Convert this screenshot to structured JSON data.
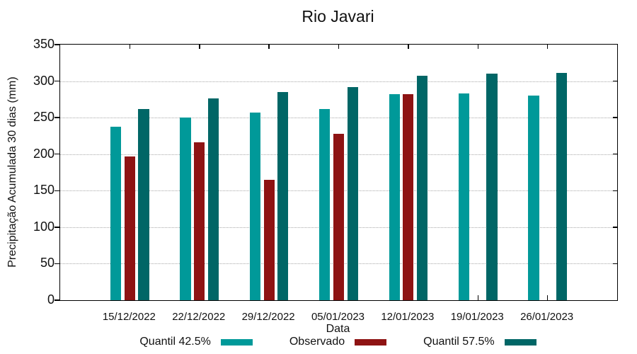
{
  "title": "Rio Javari",
  "chart_data": {
    "type": "bar",
    "title": "Rio Javari",
    "xlabel": "Data",
    "ylabel": "Precipitação Acumulada 30 dias (mm)",
    "categories": [
      "15/12/2022",
      "22/12/2022",
      "29/12/2022",
      "05/01/2023",
      "12/01/2023",
      "19/01/2023",
      "26/01/2023"
    ],
    "series": [
      {
        "name": "Quantil 42.5%",
        "color": "#009999",
        "values": [
          238,
          250,
          257,
          262,
          282,
          283,
          280
        ]
      },
      {
        "name": "Observado",
        "color": "#8E1313",
        "values": [
          197,
          216,
          165,
          228,
          282,
          null,
          null
        ]
      },
      {
        "name": "Quantil 57.5%",
        "color": "#006666",
        "values": [
          262,
          276,
          285,
          292,
          307,
          310,
          311
        ]
      }
    ],
    "ylim": [
      0,
      350
    ],
    "ytick_step": 50,
    "yticks": [
      0,
      50,
      100,
      150,
      200,
      250,
      300,
      350
    ],
    "grid": "horizontal-dotted",
    "legend_position": "bottom",
    "colors": {
      "quantil_42_5": "#009999",
      "observado": "#8E1313",
      "quantil_57_5": "#006666",
      "gridline": "#a8a8a8",
      "axis": "#000000"
    }
  }
}
